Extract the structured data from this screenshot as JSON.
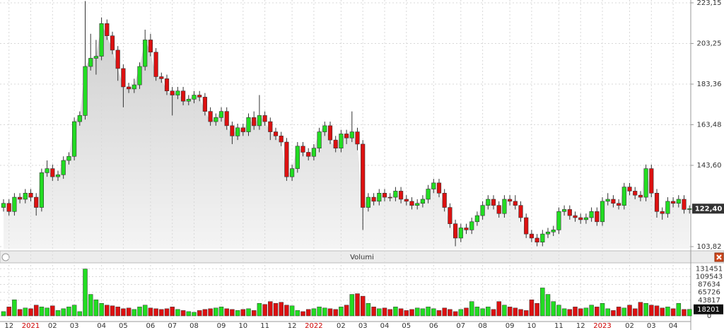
{
  "chart_data": [
    {
      "type": "candlestick",
      "open": [
        123,
        125,
        121,
        128,
        127,
        130,
        128,
        123,
        140,
        142,
        138,
        139,
        146,
        148,
        165,
        168,
        192,
        196,
        197,
        213,
        207,
        200,
        191,
        182,
        181,
        183,
        192,
        205,
        199,
        187,
        186,
        180,
        178,
        180,
        175,
        176,
        178,
        177,
        170,
        165,
        167,
        170,
        163,
        158,
        162,
        160,
        167,
        163,
        168,
        165,
        160,
        158,
        155,
        138,
        142,
        153,
        150,
        148,
        152,
        160,
        163,
        156,
        152,
        159,
        157,
        160,
        154,
        123,
        128,
        126,
        130,
        128,
        128,
        131,
        127,
        126,
        124,
        125,
        127,
        132,
        135,
        130,
        123,
        115,
        108,
        113,
        112,
        116,
        119,
        124,
        127,
        124,
        120,
        127,
        126,
        124,
        118,
        110,
        108,
        106,
        110,
        111,
        112,
        121,
        122,
        119,
        118,
        117,
        118,
        121,
        116,
        126,
        127,
        125,
        124,
        133,
        131,
        129,
        128,
        142,
        130,
        121,
        120,
        126,
        125,
        127,
        122
      ],
      "high": [
        127,
        127,
        130,
        130,
        132,
        132,
        130,
        142,
        146,
        144,
        141,
        148,
        150,
        167,
        170,
        224,
        208,
        205,
        216,
        215,
        209,
        202,
        193,
        184,
        186,
        194,
        210,
        208,
        201,
        189,
        188,
        182,
        182,
        182,
        178,
        180,
        180,
        179,
        172,
        169,
        172,
        172,
        165,
        164,
        164,
        169,
        170,
        178,
        170,
        167,
        162,
        160,
        157,
        144,
        155,
        155,
        152,
        154,
        162,
        165,
        165,
        158,
        161,
        161,
        170,
        162,
        156,
        130,
        130,
        132,
        132,
        130,
        133,
        133,
        129,
        128,
        127,
        129,
        134,
        137,
        137,
        132,
        125,
        117,
        115,
        115,
        118,
        121,
        126,
        129,
        129,
        126,
        129,
        129,
        129,
        126,
        120,
        112,
        110,
        112,
        113,
        114,
        123,
        124,
        124,
        121,
        120,
        120,
        123,
        123,
        128,
        130,
        129,
        127,
        135,
        135,
        133,
        131,
        144,
        144,
        132,
        123,
        128,
        128,
        129,
        129,
        124
      ],
      "low": [
        121,
        119,
        119,
        125,
        125,
        126,
        119,
        121,
        138,
        136,
        136,
        137,
        144,
        146,
        163,
        166,
        190,
        188,
        195,
        205,
        198,
        185,
        172,
        179,
        179,
        181,
        190,
        197,
        185,
        184,
        178,
        168,
        176,
        173,
        173,
        174,
        175,
        168,
        163,
        163,
        165,
        161,
        154,
        156,
        158,
        158,
        161,
        161,
        163,
        156,
        156,
        153,
        136,
        136,
        140,
        148,
        146,
        146,
        150,
        158,
        154,
        150,
        150,
        154,
        155,
        151,
        112,
        121,
        124,
        124,
        126,
        126,
        126,
        125,
        124,
        122,
        122,
        123,
        125,
        130,
        128,
        121,
        113,
        104,
        106,
        110,
        110,
        114,
        117,
        122,
        122,
        118,
        118,
        124,
        122,
        116,
        108,
        106,
        104,
        104,
        108,
        109,
        110,
        119,
        117,
        116,
        115,
        115,
        116,
        114,
        114,
        124,
        123,
        122,
        122,
        129,
        127,
        126,
        126,
        128,
        118,
        117,
        118,
        123,
        123,
        120,
        120
      ],
      "close": [
        125,
        121,
        128,
        127,
        130,
        128,
        123,
        140,
        142,
        138,
        139,
        146,
        148,
        165,
        168,
        192,
        196,
        197,
        213,
        207,
        200,
        191,
        182,
        181,
        183,
        192,
        205,
        199,
        187,
        186,
        180,
        178,
        180,
        175,
        176,
        178,
        177,
        170,
        165,
        167,
        170,
        163,
        158,
        162,
        160,
        167,
        163,
        168,
        165,
        160,
        158,
        155,
        138,
        142,
        153,
        150,
        148,
        152,
        160,
        163,
        156,
        152,
        159,
        157,
        160,
        154,
        123,
        128,
        126,
        130,
        128,
        128,
        131,
        127,
        126,
        124,
        125,
        127,
        132,
        135,
        130,
        123,
        115,
        108,
        113,
        112,
        116,
        119,
        124,
        127,
        124,
        120,
        127,
        126,
        124,
        118,
        110,
        108,
        106,
        110,
        111,
        112,
        121,
        122,
        119,
        118,
        117,
        118,
        121,
        116,
        126,
        127,
        125,
        124,
        133,
        131,
        129,
        128,
        142,
        130,
        121,
        120,
        126,
        125,
        127,
        122,
        122.4
      ],
      "last_value_label": "122,40",
      "up_color": "#22dd22",
      "down_color": "#dd1111",
      "ylim": [
        102.78,
        224.53
      ],
      "yticks": [
        {
          "value": 223.15,
          "label": "223,15"
        },
        {
          "value": 203.25,
          "label": "203,25"
        },
        {
          "value": 183.36,
          "label": "183,36"
        },
        {
          "value": 163.48,
          "label": "163,48"
        },
        {
          "value": 143.6,
          "label": "143,60"
        },
        {
          "value": 103.82,
          "label": "103,82"
        }
      ],
      "grid": true
    },
    {
      "type": "bar",
      "title": "Volumi",
      "categories": [
        null,
        "12",
        null,
        null,
        null,
        "2021",
        null,
        null,
        null,
        "02",
        null,
        null,
        null,
        "03",
        null,
        null,
        null,
        null,
        "04",
        null,
        null,
        null,
        "05",
        null,
        null,
        null,
        null,
        "06",
        null,
        null,
        null,
        "07",
        null,
        null,
        null,
        "08",
        null,
        null,
        null,
        null,
        "09",
        null,
        null,
        null,
        "10",
        null,
        null,
        null,
        "11",
        null,
        null,
        null,
        null,
        "12",
        null,
        null,
        null,
        "2022",
        null,
        null,
        null,
        null,
        "02",
        null,
        null,
        null,
        "03",
        null,
        null,
        null,
        "04",
        null,
        null,
        null,
        "05",
        null,
        null,
        null,
        null,
        "06",
        null,
        null,
        null,
        null,
        "07",
        null,
        null,
        null,
        "08",
        null,
        null,
        null,
        null,
        "09",
        null,
        null,
        null,
        "10",
        null,
        null,
        null,
        null,
        "11",
        null,
        null,
        null,
        "12",
        null,
        null,
        null,
        "2023",
        null,
        null,
        null,
        null,
        "02",
        null,
        null,
        null,
        "03",
        null,
        null,
        null,
        "04",
        null,
        null,
        null
      ],
      "values": [
        12000,
        25000,
        45000,
        18000,
        22000,
        20000,
        30000,
        25000,
        22000,
        28000,
        15000,
        20000,
        25000,
        30000,
        12000,
        131000,
        60000,
        45000,
        35000,
        30000,
        28000,
        25000,
        20000,
        22000,
        18000,
        25000,
        30000,
        22000,
        20000,
        18000,
        20000,
        25000,
        18000,
        15000,
        12000,
        10000,
        15000,
        18000,
        20000,
        22000,
        25000,
        20000,
        18000,
        15000,
        18000,
        20000,
        15000,
        35000,
        32000,
        40000,
        35000,
        38000,
        30000,
        28000,
        15000,
        12000,
        18000,
        20000,
        25000,
        22000,
        20000,
        18000,
        25000,
        30000,
        60000,
        62000,
        55000,
        35000,
        25000,
        20000,
        22000,
        18000,
        25000,
        20000,
        15000,
        18000,
        22000,
        20000,
        25000,
        20000,
        15000,
        22000,
        18000,
        12000,
        18000,
        22000,
        40000,
        25000,
        20000,
        25000,
        18000,
        40000,
        30000,
        25000,
        22000,
        18000,
        15000,
        45000,
        35000,
        78000,
        60000,
        40000,
        30000,
        20000,
        18000,
        25000,
        20000,
        22000,
        30000,
        25000,
        35000,
        20000,
        15000,
        25000,
        22000,
        30000,
        20000,
        38000,
        35000,
        30000,
        28000,
        22000,
        25000,
        20000,
        35000,
        18000,
        18201
      ],
      "ylim": [
        0,
        140000
      ],
      "yticks": [
        131451,
        109543,
        87634,
        65726,
        43817,
        0
      ],
      "grid": true
    }
  ]
}
